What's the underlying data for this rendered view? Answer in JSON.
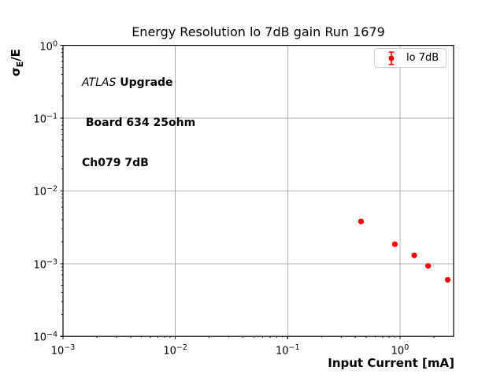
{
  "figure": {
    "background": "#ffffff",
    "annotation": {
      "line1_italic": "ATLAS",
      "line1_bold": " Upgrade",
      "line2": " Board 634 25ohm",
      "line3": "Ch079 7dB"
    },
    "ylabel_parts": {
      "sigma": "σ",
      "sub": "E",
      "rest": "/E"
    }
  },
  "chart_data": {
    "type": "scatter",
    "title": "Energy Resolution lo 7dB gain Run 1679",
    "xlabel": "Input Current [mA]",
    "ylabel": "σ_E/E",
    "xscale": "log",
    "yscale": "log",
    "xlim": [
      0.001,
      3.0
    ],
    "ylim": [
      0.0001,
      1.0
    ],
    "xticks": [
      0.001,
      0.01,
      0.1,
      1.0
    ],
    "yticks": [
      1.0,
      0.1,
      0.01,
      0.001,
      0.0001
    ],
    "grid": true,
    "legend": {
      "label": "lo 7dB",
      "position": "upper right"
    },
    "series": [
      {
        "name": "lo 7dB",
        "color": "#ff0000",
        "marker": "circle-with-errorbar",
        "x": [
          0.45,
          0.9,
          1.34,
          1.78,
          2.66
        ],
        "y": [
          0.0038,
          0.00185,
          0.0013,
          0.00093,
          0.0006
        ]
      }
    ]
  },
  "colors": {
    "marker": "#ff0000",
    "grid": "#b0b0b0",
    "spine": "#000000",
    "tick": "#000000",
    "legend_border": "#cccccc",
    "background": "#ffffff"
  }
}
